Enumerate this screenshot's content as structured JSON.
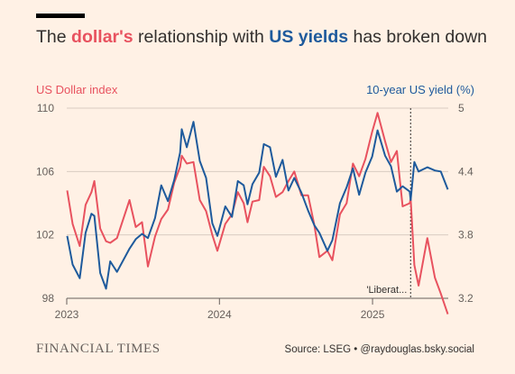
{
  "header": {
    "title_pre": "The ",
    "title_h1": "dollar's",
    "title_mid": " relationship with ",
    "title_h2": "US yields",
    "title_post": " has broken down"
  },
  "footer": {
    "brand": "FINANCIAL TIMES",
    "source": "Source: LSEG • @raydouglas.bsky.social"
  },
  "chart_data": {
    "type": "line",
    "colors": {
      "dollar": "#E8525F",
      "yields": "#1E5A9C",
      "grid": "#D9CCC1"
    },
    "y_left": {
      "label": "US Dollar index",
      "range": [
        98,
        110
      ],
      "ticks": [
        98,
        102,
        106,
        110
      ]
    },
    "y_right": {
      "label": "10-year US yield (%)",
      "range": [
        3.2,
        5.0
      ],
      "ticks": [
        3.2,
        3.8,
        4.4,
        5
      ]
    },
    "x_axis": {
      "range": [
        "2023-01-01",
        "2025-07-01"
      ],
      "ticks": [
        {
          "date": "2023-01-01",
          "label": "2023"
        },
        {
          "date": "2024-01-01",
          "label": "2024"
        },
        {
          "date": "2025-01-01",
          "label": "2025"
        }
      ]
    },
    "grid": true,
    "annotation": {
      "date": "2025-04-02",
      "label": "'Liberat..."
    },
    "series": [
      {
        "name": "US Dollar index",
        "axis": "left",
        "x": [
          "2023-01-02",
          "2023-01-15",
          "2023-02-01",
          "2023-02-15",
          "2023-03-01",
          "2023-03-08",
          "2023-03-22",
          "2023-04-05",
          "2023-04-15",
          "2023-05-01",
          "2023-05-31",
          "2023-06-15",
          "2023-06-30",
          "2023-07-14",
          "2023-07-31",
          "2023-08-15",
          "2023-08-31",
          "2023-09-15",
          "2023-09-29",
          "2023-10-03",
          "2023-10-15",
          "2023-10-31",
          "2023-11-15",
          "2023-11-30",
          "2023-12-15",
          "2023-12-27",
          "2024-01-15",
          "2024-01-31",
          "2024-02-14",
          "2024-02-28",
          "2024-03-08",
          "2024-03-20",
          "2024-04-05",
          "2024-04-16",
          "2024-05-01",
          "2024-05-15",
          "2024-05-31",
          "2024-06-14",
          "2024-06-28",
          "2024-07-15",
          "2024-07-31",
          "2024-08-15",
          "2024-08-27",
          "2024-09-15",
          "2024-09-27",
          "2024-10-15",
          "2024-10-31",
          "2024-11-15",
          "2024-11-30",
          "2024-12-15",
          "2024-12-31",
          "2025-01-13",
          "2025-01-31",
          "2025-02-14",
          "2025-02-28",
          "2025-03-14",
          "2025-03-31",
          "2025-04-02",
          "2025-04-11",
          "2025-04-21",
          "2025-05-12",
          "2025-05-30",
          "2025-06-13",
          "2025-06-30"
        ],
        "values": [
          104.8,
          102.7,
          101.3,
          103.9,
          104.7,
          105.4,
          102.4,
          101.6,
          101.5,
          101.8,
          104.2,
          102.5,
          102.8,
          100.0,
          101.9,
          103.0,
          103.6,
          105.3,
          106.3,
          107.0,
          106.5,
          106.6,
          104.2,
          103.5,
          102.0,
          101.0,
          102.7,
          103.3,
          104.7,
          104.0,
          102.8,
          104.1,
          104.2,
          106.3,
          105.7,
          104.4,
          104.7,
          105.4,
          106.0,
          104.5,
          104.5,
          102.6,
          100.6,
          101.0,
          100.4,
          103.3,
          104.0,
          106.5,
          105.7,
          106.8,
          108.5,
          109.7,
          107.9,
          106.6,
          107.3,
          103.8,
          104.0,
          104.3,
          100.1,
          98.8,
          101.8,
          99.3,
          98.3,
          97.0
        ]
      },
      {
        "name": "10-year US yield (%)",
        "axis": "right",
        "x": [
          "2023-01-02",
          "2023-01-15",
          "2023-02-01",
          "2023-02-15",
          "2023-03-01",
          "2023-03-08",
          "2023-03-22",
          "2023-04-05",
          "2023-04-15",
          "2023-05-01",
          "2023-05-31",
          "2023-06-15",
          "2023-06-30",
          "2023-07-14",
          "2023-07-31",
          "2023-08-15",
          "2023-08-31",
          "2023-09-15",
          "2023-09-29",
          "2023-10-03",
          "2023-10-15",
          "2023-10-31",
          "2023-11-15",
          "2023-11-30",
          "2023-12-15",
          "2023-12-27",
          "2024-01-15",
          "2024-01-31",
          "2024-02-14",
          "2024-02-28",
          "2024-03-08",
          "2024-03-20",
          "2024-04-05",
          "2024-04-16",
          "2024-05-01",
          "2024-05-15",
          "2024-05-31",
          "2024-06-14",
          "2024-06-28",
          "2024-07-15",
          "2024-07-31",
          "2024-08-15",
          "2024-08-27",
          "2024-09-15",
          "2024-09-27",
          "2024-10-15",
          "2024-10-31",
          "2024-11-15",
          "2024-11-30",
          "2024-12-15",
          "2024-12-31",
          "2025-01-13",
          "2025-01-31",
          "2025-02-14",
          "2025-02-28",
          "2025-03-14",
          "2025-03-31",
          "2025-04-02",
          "2025-04-11",
          "2025-04-21",
          "2025-05-12",
          "2025-05-30",
          "2025-06-13",
          "2025-06-30"
        ],
        "values": [
          3.79,
          3.52,
          3.39,
          3.82,
          4.0,
          3.98,
          3.44,
          3.29,
          3.55,
          3.45,
          3.67,
          3.76,
          3.81,
          3.77,
          3.96,
          4.27,
          4.12,
          4.32,
          4.58,
          4.8,
          4.63,
          4.87,
          4.5,
          4.34,
          3.91,
          3.79,
          4.07,
          3.97,
          4.31,
          4.27,
          4.09,
          4.28,
          4.39,
          4.66,
          4.63,
          4.35,
          4.51,
          4.22,
          4.34,
          4.2,
          4.03,
          3.89,
          3.82,
          3.65,
          3.75,
          4.1,
          4.25,
          4.43,
          4.18,
          4.39,
          4.54,
          4.79,
          4.55,
          4.45,
          4.21,
          4.26,
          4.21,
          4.13,
          4.49,
          4.4,
          4.44,
          4.41,
          4.4,
          4.23
        ]
      }
    ]
  }
}
